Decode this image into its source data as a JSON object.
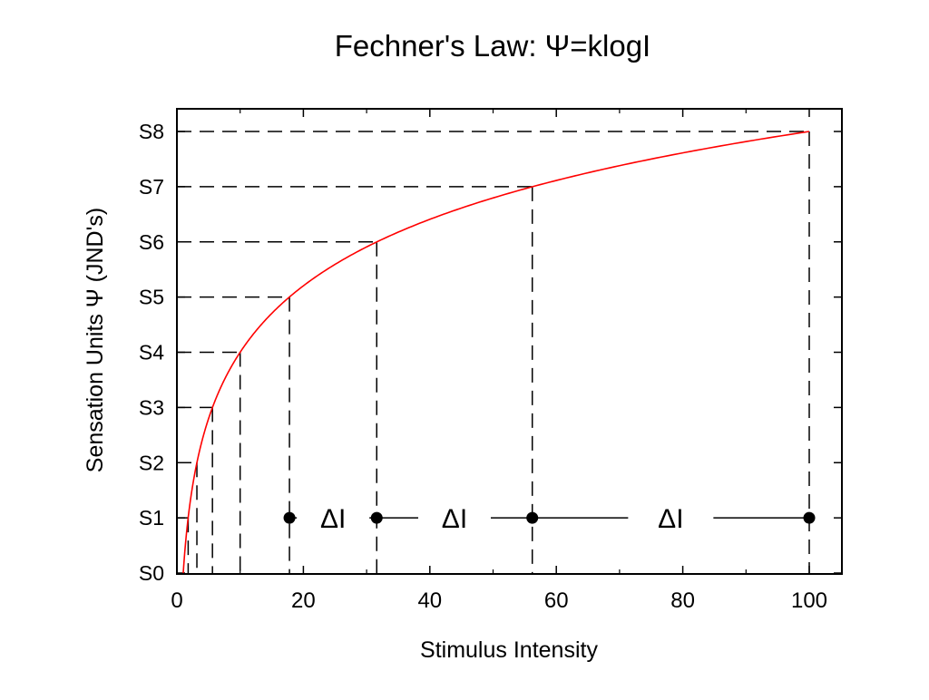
{
  "chart_data": {
    "type": "line",
    "title": "Fechner's Law:  Ψ=klogI",
    "xlabel": "Stimulus Intensity",
    "ylabel": "Sensation Units Ψ (JND's)",
    "xlim": [
      0,
      105
    ],
    "ylim": [
      0,
      8.2
    ],
    "x_ticks": [
      {
        "value": 0,
        "label": "0"
      },
      {
        "value": 20,
        "label": "20"
      },
      {
        "value": 40,
        "label": "40"
      },
      {
        "value": 60,
        "label": "60"
      },
      {
        "value": 80,
        "label": "80"
      },
      {
        "value": 100,
        "label": "100"
      }
    ],
    "y_ticks": [
      {
        "value": 0,
        "label": "S0"
      },
      {
        "value": 1,
        "label": "S1"
      },
      {
        "value": 2,
        "label": "S2"
      },
      {
        "value": 3,
        "label": "S3"
      },
      {
        "value": 4,
        "label": "S4"
      },
      {
        "value": 5,
        "label": "S5"
      },
      {
        "value": 6,
        "label": "S6"
      },
      {
        "value": 7,
        "label": "S7"
      },
      {
        "value": 8,
        "label": "S8"
      }
    ],
    "grid": false,
    "curve": {
      "color": "#ff0000",
      "function": "Ψ = 8·log(I)/log(100)",
      "x_range": [
        1,
        100
      ]
    },
    "marked_points": [
      {
        "x": 1.78,
        "y": 1
      },
      {
        "x": 3.16,
        "y": 2
      },
      {
        "x": 5.62,
        "y": 3
      },
      {
        "x": 10,
        "y": 4
      },
      {
        "x": 17.8,
        "y": 5
      },
      {
        "x": 31.6,
        "y": 6
      },
      {
        "x": 56.2,
        "y": 7
      },
      {
        "x": 100,
        "y": 8
      }
    ],
    "delta_row": {
      "y": 1,
      "points": [
        17.8,
        31.6,
        56.2,
        100
      ],
      "labels": [
        {
          "x": 24.7,
          "text": "ΔI"
        },
        {
          "x": 43.9,
          "text": "ΔI"
        },
        {
          "x": 78.1,
          "text": "ΔI"
        }
      ]
    }
  }
}
